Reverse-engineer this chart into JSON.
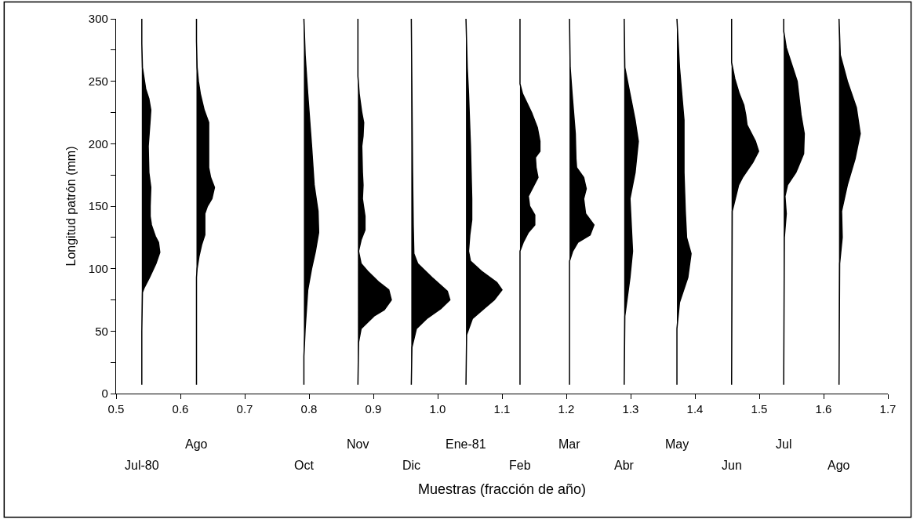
{
  "chart_data": {
    "type": "area",
    "xlabel": "Muestras (fracción de año)",
    "ylabel": "Longitud patrón (mm)",
    "xlim": [
      0.5,
      1.7
    ],
    "xticks": [
      0.5,
      0.6,
      0.7,
      0.8,
      0.9,
      {
        "value": 1.0,
        "label": "1.0"
      },
      1.1,
      1.2,
      1.3,
      1.4,
      1.5,
      1.6,
      1.7
    ],
    "ylim": [
      0,
      300
    ],
    "yticks": [
      0,
      {
        "value": 25,
        "label": null
      },
      50,
      {
        "value": 75,
        "label": null
      },
      100,
      {
        "value": 125,
        "label": null
      },
      150,
      {
        "value": 175,
        "label": null
      },
      200,
      {
        "value": 225,
        "label": null
      },
      250,
      {
        "value": 275,
        "label": null
      },
      300
    ],
    "series": [
      {
        "color": "#000000",
        "x": [
          0.54,
          0.54,
          0.541,
          0.544,
          0.552,
          0.562,
          0.568,
          0.566,
          0.561,
          0.555,
          0.553,
          0.553,
          0.554,
          0.551,
          0.55,
          0.553,
          0.554,
          0.551,
          0.546,
          0.541,
          0.54,
          0.54
        ],
        "values": [
          7,
          50,
          81,
          85,
          93,
          104,
          113,
          121,
          126,
          135,
          142,
          150,
          165,
          177,
          198,
          219,
          227,
          236,
          244,
          261,
          280,
          300
        ]
      },
      {
        "color": "#000000",
        "x": [
          0.625,
          0.625,
          0.626,
          0.629,
          0.633,
          0.638,
          0.638,
          0.642,
          0.649,
          0.653,
          0.647,
          0.644,
          0.644,
          0.644,
          0.644,
          0.637,
          0.631,
          0.628,
          0.626,
          0.625,
          0.625
        ],
        "values": [
          7,
          93,
          100,
          110,
          119,
          127,
          144,
          150,
          156,
          165,
          173,
          181,
          198,
          208,
          217,
          227,
          240,
          250,
          261,
          282,
          300
        ]
      },
      {
        "color": "#000000",
        "x": [
          0.792,
          0.792,
          0.794,
          0.798,
          0.804,
          0.81,
          0.815,
          0.814,
          0.808,
          0.804,
          0.798,
          0.794,
          0.792
        ],
        "values": [
          7,
          30,
          52,
          83,
          100,
          114,
          129,
          146,
          167,
          198,
          240,
          271,
          300
        ]
      },
      {
        "color": "#000000",
        "x": [
          0.876,
          0.877,
          0.881,
          0.901,
          0.917,
          0.928,
          0.924,
          0.909,
          0.891,
          0.881,
          0.877,
          0.881,
          0.887,
          0.887,
          0.883,
          0.884,
          0.883,
          0.882,
          0.884,
          0.885,
          0.882,
          0.878,
          0.876,
          0.876
        ],
        "values": [
          7,
          41,
          52,
          62,
          67,
          75,
          83,
          89,
          98,
          104,
          114,
          123,
          131,
          142,
          156,
          167,
          177,
          198,
          206,
          217,
          225,
          240,
          254,
          300
        ]
      },
      {
        "color": "#000000",
        "x": [
          0.959,
          0.96,
          0.967,
          0.983,
          1.005,
          1.019,
          1.015,
          0.991,
          0.969,
          0.963,
          0.962,
          0.961,
          0.96,
          0.959
        ],
        "values": [
          7,
          37,
          52,
          60,
          68,
          75,
          82,
          93,
          104,
          112,
          135,
          177,
          240,
          300
        ]
      },
      {
        "color": "#000000",
        "x": [
          1.044,
          1.045,
          1.054,
          1.072,
          1.088,
          1.1,
          1.092,
          1.068,
          1.051,
          1.048,
          1.05,
          1.053,
          1.053,
          1.052,
          1.051,
          1.048,
          1.046,
          1.044
        ],
        "values": [
          7,
          47,
          60,
          68,
          75,
          83,
          89,
          98,
          106,
          114,
          127,
          139,
          156,
          177,
          198,
          240,
          261,
          300
        ]
      },
      {
        "color": "#000000",
        "x": [
          1.128,
          1.128,
          1.133,
          1.141,
          1.151,
          1.151,
          1.143,
          1.141,
          1.156,
          1.153,
          1.152,
          1.159,
          1.159,
          1.155,
          1.146,
          1.132,
          1.128,
          1.128
        ],
        "values": [
          7,
          114,
          121,
          129,
          135,
          143,
          150,
          158,
          173,
          181,
          189,
          194,
          202,
          213,
          225,
          240,
          248,
          300
        ]
      },
      {
        "color": "#000000",
        "x": [
          1.205,
          1.205,
          1.21,
          1.218,
          1.237,
          1.243,
          1.23,
          1.227,
          1.231,
          1.227,
          1.216,
          1.215,
          1.214,
          1.209,
          1.206,
          1.205
        ],
        "values": [
          7,
          106,
          114,
          121,
          127,
          135,
          144,
          156,
          164,
          173,
          181,
          188,
          208,
          240,
          261,
          300
        ]
      },
      {
        "color": "#000000",
        "x": [
          1.29,
          1.291,
          1.299,
          1.303,
          1.301,
          1.299,
          1.307,
          1.312,
          1.307,
          1.299,
          1.291,
          1.29
        ],
        "values": [
          7,
          62,
          93,
          114,
          135,
          156,
          177,
          202,
          219,
          240,
          261,
          300
        ]
      },
      {
        "color": "#000000",
        "x": [
          1.372,
          1.372,
          1.376,
          1.389,
          1.394,
          1.387,
          1.385,
          1.383,
          1.383,
          1.376,
          1.372
        ],
        "values": [
          7,
          52,
          73,
          93,
          112,
          125,
          146,
          177,
          219,
          261,
          300
        ]
      },
      {
        "color": "#000000",
        "x": [
          1.457,
          1.458,
          1.468,
          1.474,
          1.49,
          1.499,
          1.494,
          1.481,
          1.479,
          1.476,
          1.469,
          1.462,
          1.457,
          1.457
        ],
        "values": [
          7,
          146,
          167,
          173,
          185,
          194,
          202,
          215,
          223,
          231,
          240,
          252,
          265,
          300
        ]
      },
      {
        "color": "#000000",
        "x": [
          1.538,
          1.539,
          1.542,
          1.54,
          1.544,
          1.557,
          1.569,
          1.57,
          1.565,
          1.559,
          1.542,
          1.538,
          1.538
        ],
        "values": [
          7,
          125,
          144,
          158,
          167,
          177,
          192,
          208,
          223,
          250,
          277,
          290,
          300
        ]
      },
      {
        "color": "#000000",
        "x": [
          1.624,
          1.625,
          1.629,
          1.628,
          1.637,
          1.649,
          1.657,
          1.651,
          1.637,
          1.626,
          1.624
        ],
        "values": [
          7,
          104,
          125,
          146,
          167,
          188,
          208,
          229,
          250,
          271,
          300
        ]
      }
    ],
    "annotations": [
      "Jul-80",
      "Ago",
      "Oct",
      "Nov",
      "Dic",
      "Ene-81",
      "Feb",
      "Mar",
      "Abr",
      "May",
      "Jun",
      "Jul",
      "Ago"
    ]
  }
}
